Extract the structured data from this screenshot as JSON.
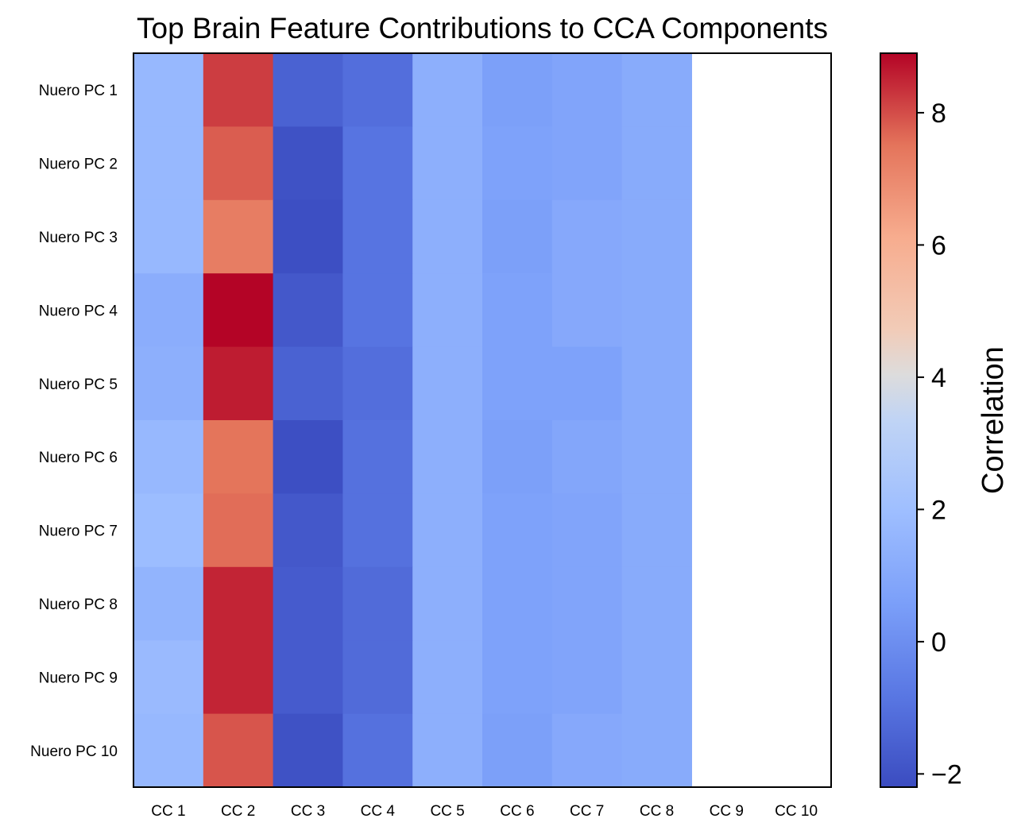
{
  "chart_data": {
    "type": "heatmap",
    "title": "Top Brain Feature Contributions to CCA Components",
    "x_categories": [
      "CC 1",
      "CC 2",
      "CC 3",
      "CC 4",
      "CC 5",
      "CC 6",
      "CC 7",
      "CC 8",
      "CC 9",
      "CC 10"
    ],
    "y_categories": [
      "Nuero PC 1",
      "Nuero PC 2",
      "Nuero PC 3",
      "Nuero PC 4",
      "Nuero PC 5",
      "Nuero PC 6",
      "Nuero PC 7",
      "Nuero PC 8",
      "Nuero PC 9",
      "Nuero PC 10"
    ],
    "values": [
      [
        1.7,
        8.2,
        -1.5,
        -1.1,
        1.3,
        0.6,
        0.8,
        1.1,
        null,
        null
      ],
      [
        1.7,
        7.8,
        -2.0,
        -0.9,
        1.3,
        0.7,
        0.8,
        1.1,
        null,
        null
      ],
      [
        1.7,
        7.3,
        -2.1,
        -0.9,
        1.3,
        0.6,
        1.0,
        1.1,
        null,
        null
      ],
      [
        1.2,
        8.9,
        -1.8,
        -0.9,
        1.3,
        0.7,
        1.0,
        1.1,
        null,
        null
      ],
      [
        1.3,
        8.6,
        -1.5,
        -1.1,
        1.3,
        0.7,
        0.7,
        1.1,
        null,
        null
      ],
      [
        1.7,
        7.5,
        -2.1,
        -1.0,
        1.3,
        0.6,
        0.9,
        1.1,
        null,
        null
      ],
      [
        1.9,
        7.6,
        -1.8,
        -1.0,
        1.3,
        0.7,
        0.8,
        1.1,
        null,
        null
      ],
      [
        1.5,
        8.5,
        -1.7,
        -1.2,
        1.3,
        0.7,
        0.8,
        1.1,
        null,
        null
      ],
      [
        1.8,
        8.5,
        -1.7,
        -1.2,
        1.3,
        0.7,
        0.8,
        1.1,
        null,
        null
      ],
      [
        1.7,
        7.9,
        -2.0,
        -1.0,
        1.3,
        0.6,
        1.0,
        1.1,
        null,
        null
      ]
    ],
    "colorbar": {
      "label": "Correlation",
      "range": [
        -2.2,
        8.9
      ],
      "ticks": [
        -2,
        0,
        2,
        4,
        6,
        8
      ],
      "tick_labels": [
        "−2",
        "0",
        "2",
        "4",
        "6",
        "8"
      ],
      "colormap": "coolwarm"
    },
    "grid": false
  }
}
